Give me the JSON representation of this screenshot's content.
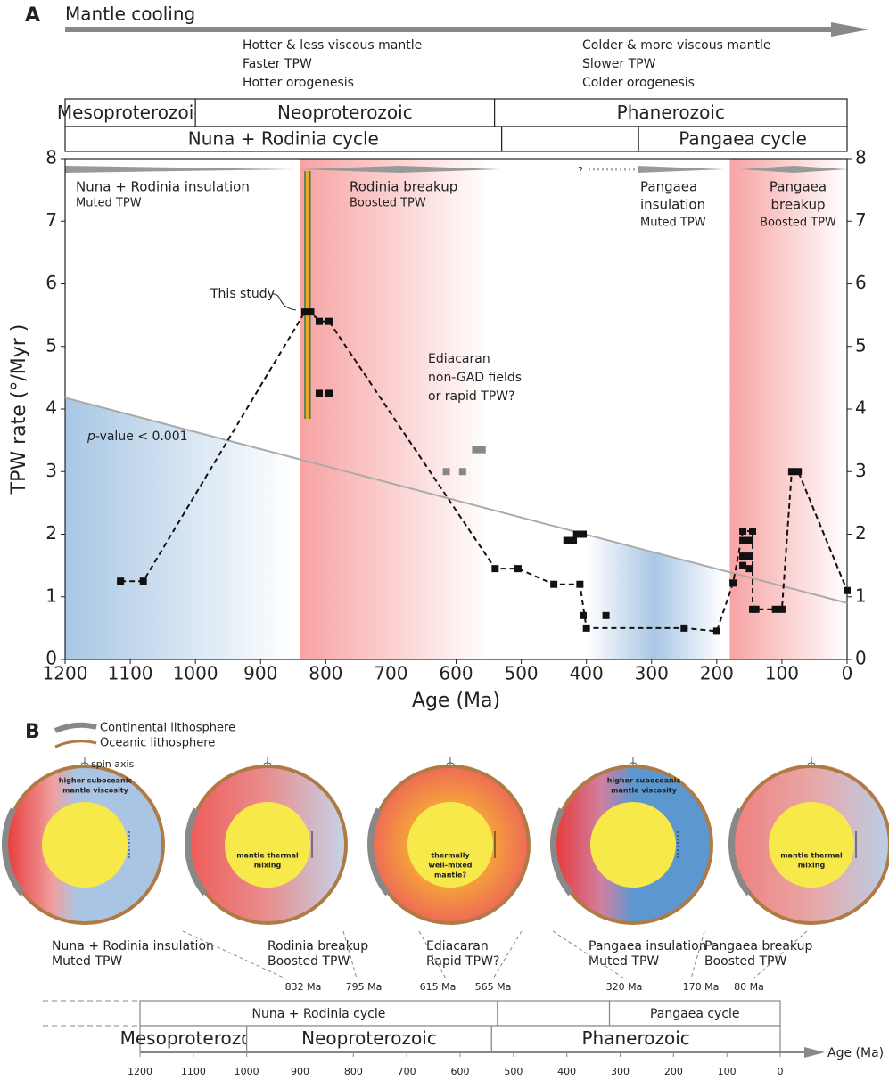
{
  "chart_data": {
    "type": "line",
    "panel_label": "A",
    "header": {
      "arrow_label": "Mantle cooling",
      "left_lines": [
        "Hotter & less viscous mantle",
        "Faster TPW",
        "Hotter orogenesis"
      ],
      "right_lines": [
        "Colder & more viscous mantle",
        "Slower TPW",
        "Colder orogenesis"
      ]
    },
    "eras": [
      {
        "name": "Mesoproterozoic",
        "start": 1200,
        "end": 1000
      },
      {
        "name": "Neoproterozoic",
        "start": 1000,
        "end": 541
      },
      {
        "name": "Phanerozoic",
        "start": 541,
        "end": 0
      }
    ],
    "cycles": [
      {
        "name": "Nuna + Rodinia cycle",
        "start": 1200,
        "end": 530
      },
      {
        "name": null,
        "start": 530,
        "end": 320
      },
      {
        "name": "Pangaea cycle",
        "start": 320,
        "end": 0
      }
    ],
    "bands": [
      {
        "start": 1200,
        "end": 850,
        "color": "#a9c7e5",
        "lines": [
          "Nuna + Rodinia insulation",
          "Muted TPW"
        ]
      },
      {
        "start": 840,
        "end": 550,
        "color": "#f7a3a3",
        "lines": [
          "Rodinia breakup",
          "Boosted TPW"
        ]
      },
      {
        "start": 400,
        "end": 190,
        "color": "#a9c7e5",
        "lines": [
          "Pangaea",
          "insulation",
          "Muted TPW"
        ]
      },
      {
        "start": 180,
        "end": 0,
        "color": "#f7a3a3",
        "lines": [
          "Pangaea",
          "breakup",
          "Boosted TPW"
        ]
      }
    ],
    "x": [
      1115,
      1080,
      832,
      823,
      810,
      795,
      540,
      505,
      450,
      410,
      400,
      250,
      200,
      175,
      160,
      145,
      145,
      140,
      110,
      100,
      85,
      75,
      0
    ],
    "values": [
      1.25,
      1.25,
      5.55,
      5.55,
      5.4,
      5.4,
      1.45,
      1.45,
      1.2,
      1.2,
      0.5,
      0.5,
      0.45,
      1.22,
      2.05,
      2.05,
      0.8,
      0.8,
      0.8,
      0.8,
      3.0,
      3.0,
      1.1
    ],
    "color": "#111111",
    "other_points": {
      "x": [
        810,
        795,
        405,
        370,
        430,
        420,
        415,
        405,
        160,
        150,
        160,
        150,
        160,
        150
      ],
      "values": [
        4.25,
        4.25,
        0.7,
        0.7,
        1.9,
        1.9,
        2.0,
        2.0,
        1.9,
        1.9,
        1.65,
        1.65,
        1.5,
        1.45
      ],
      "color": "#111111"
    },
    "ediacaran_points": {
      "x": [
        615,
        590,
        570,
        560
      ],
      "values": [
        3.0,
        3.0,
        3.35,
        3.35
      ],
      "color": "#888888"
    },
    "trend": {
      "x": [
        1200,
        0
      ],
      "values": [
        4.18,
        0.9
      ],
      "color": "#aaaaaa",
      "label_italic": "p",
      "label": "-value < 0.001"
    },
    "annotations": {
      "this_study": "This study",
      "ediacaran": [
        "Ediacaran",
        "non-GAD fields",
        "or rapid TPW?"
      ],
      "unknown": "?"
    },
    "xlabel": "Age (Ma)",
    "ylabel": "TPW rate (°/Myr )",
    "xlim": [
      1200,
      0
    ],
    "ylim": [
      0,
      8
    ],
    "xticks": [
      1200,
      1100,
      1000,
      900,
      800,
      700,
      600,
      500,
      400,
      300,
      200,
      100,
      0
    ],
    "yticks": [
      0,
      1,
      2,
      3,
      4,
      5,
      6,
      7,
      8
    ]
  },
  "panel_b": {
    "panel_label": "B",
    "legend": [
      "Continental lithosphere",
      "Oceanic lithosphere"
    ],
    "spin_axis": "spin axis",
    "diagrams": [
      {
        "inner": [
          "higher suboceanic",
          "mantle viscosity"
        ],
        "caption": [
          "Nuna + Rodinia insulation",
          "Muted TPW"
        ]
      },
      {
        "inner": [
          "mantle thermal",
          "mixing"
        ],
        "caption": [
          "Rodinia breakup",
          "Boosted TPW"
        ]
      },
      {
        "inner": [
          "thermally",
          "well-mixed",
          "mantle?"
        ],
        "caption": [
          "Ediacaran",
          "Rapid TPW?"
        ]
      },
      {
        "inner": [
          "higher suboceanic",
          "mantle viscosity"
        ],
        "caption": [
          "Pangaea insulation",
          "Muted TPW"
        ]
      },
      {
        "inner": [
          "mantle thermal",
          "mixing"
        ],
        "caption": [
          "Pangaea breakup",
          "Boosted TPW"
        ]
      }
    ],
    "time_labels": [
      "832 Ma",
      "795 Ma",
      "615 Ma",
      "565 Ma",
      "320 Ma",
      "170 Ma",
      "80 Ma"
    ]
  }
}
